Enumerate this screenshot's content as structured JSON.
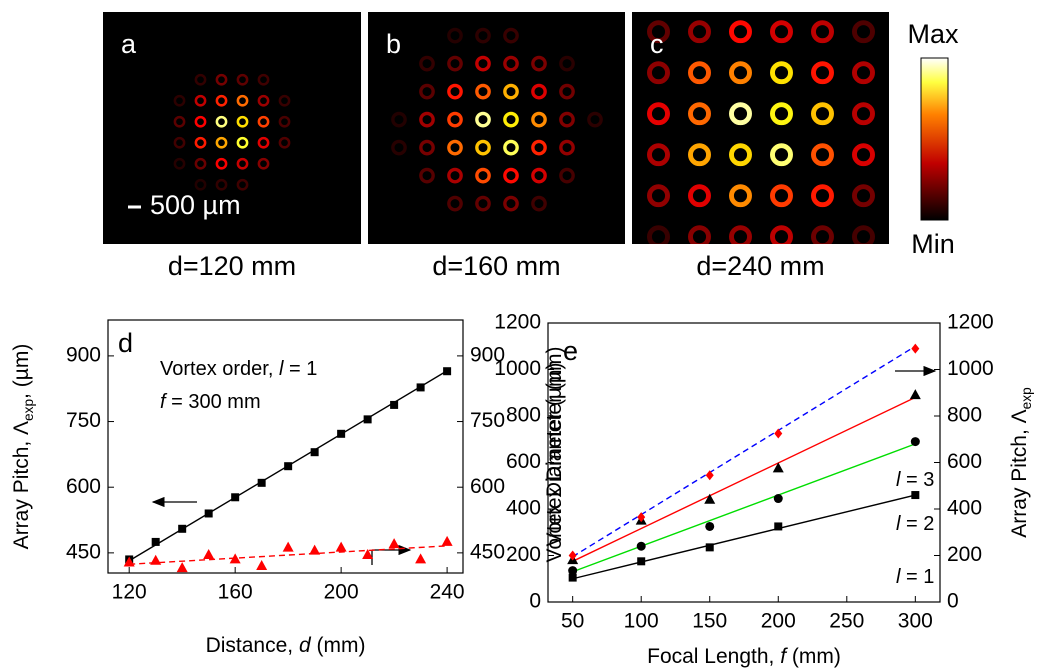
{
  "images": {
    "panels": [
      {
        "label": "a",
        "caption": "d=120 mm"
      },
      {
        "label": "b",
        "caption": "d=160 mm"
      },
      {
        "label": "c",
        "caption": "d=240 mm"
      }
    ],
    "scale_bar": "500 µm",
    "colorbar": {
      "max": "Max",
      "min": "Min"
    }
  },
  "chart_data": [
    {
      "type": "scatter",
      "panel_label": "d",
      "xlabel": [
        "Distance, ",
        "d",
        " (mm)"
      ],
      "ylabel": [
        "Array Pitch, Λ",
        "exp",
        ", (µm)"
      ],
      "y2label": [
        "Vortex Diameter (µm)"
      ],
      "x": [
        120,
        130,
        140,
        150,
        160,
        170,
        180,
        190,
        200,
        210,
        220,
        230,
        240
      ],
      "xlim": [
        112,
        246
      ],
      "ylim": [
        404,
        982
      ],
      "y2lim": [
        404,
        982
      ],
      "xticks": [
        120,
        160,
        200,
        240
      ],
      "yticks": [
        450,
        600,
        750,
        900
      ],
      "y2ticks": [
        450,
        600,
        750,
        900
      ],
      "series": [
        {
          "color": "#000000",
          "marker": "square",
          "values": [
            435,
            475,
            505,
            540,
            577,
            610,
            648,
            680,
            722,
            755,
            788,
            828,
            865
          ]
        },
        {
          "color": "#ff0000",
          "marker": "triangle",
          "axis": "y2",
          "values": [
            428,
            432,
            415,
            445,
            435,
            420,
            462,
            455,
            462,
            445,
            470,
            435,
            475
          ]
        }
      ],
      "fits": [
        {
          "x": [
            120,
            240
          ],
          "values": [
            432,
            866
          ],
          "color": "#000000",
          "dashed": false
        },
        {
          "x": [
            120,
            240
          ],
          "values": [
            424,
            466
          ],
          "color": "#ff0000",
          "dashed": true,
          "axis": "y2"
        }
      ],
      "annotations": [
        [
          "Vortex order, ",
          "l",
          " = 1"
        ],
        [
          "f",
          " = 300 mm"
        ]
      ]
    },
    {
      "type": "scatter",
      "panel_label": "e",
      "xlabel": [
        "Focal Length, ",
        "f",
        " (mm)"
      ],
      "ylabel": [
        "Vortex Diameter (µm)"
      ],
      "y2label": [
        "Array Pitch, Λ",
        "exp"
      ],
      "x": [
        50,
        100,
        150,
        200,
        300
      ],
      "xlim": [
        32,
        318
      ],
      "ylim": [
        0,
        1200
      ],
      "y2lim": [
        0,
        1200
      ],
      "xticks": [
        50,
        100,
        150,
        200,
        250,
        300
      ],
      "yticks": [
        0,
        200,
        400,
        600,
        800,
        1000,
        1200
      ],
      "y2ticks": [
        0,
        200,
        400,
        600,
        800,
        1000,
        1200
      ],
      "series": [
        {
          "color": "#000000",
          "marker": "square",
          "values": [
            105,
            175,
            235,
            325,
            460
          ]
        },
        {
          "color": "#000000",
          "marker": "circle",
          "values": [
            135,
            240,
            325,
            445,
            690
          ]
        },
        {
          "color": "#000000",
          "marker": "triangle",
          "values": [
            180,
            350,
            440,
            575,
            890
          ]
        },
        {
          "color": "#ff0000",
          "marker": "diamond",
          "axis": "y2",
          "values": [
            200,
            365,
            545,
            725,
            1090
          ]
        }
      ],
      "fits": [
        {
          "x": [
            50,
            300
          ],
          "values": [
            100,
            460
          ],
          "color": "#000000",
          "dashed": false
        },
        {
          "x": [
            50,
            300
          ],
          "values": [
            130,
            680
          ],
          "color": "#00dd00",
          "dashed": false
        },
        {
          "x": [
            50,
            300
          ],
          "values": [
            175,
            880
          ],
          "color": "#ff0000",
          "dashed": false
        },
        {
          "x": [
            50,
            300
          ],
          "values": [
            195,
            1100
          ],
          "color": "#0000ff",
          "dashed": true,
          "axis": "y2"
        }
      ],
      "annotations": [
        [
          "l",
          " = 3"
        ],
        [
          "l",
          " = 2"
        ],
        [
          "l",
          " = 1"
        ]
      ]
    }
  ]
}
